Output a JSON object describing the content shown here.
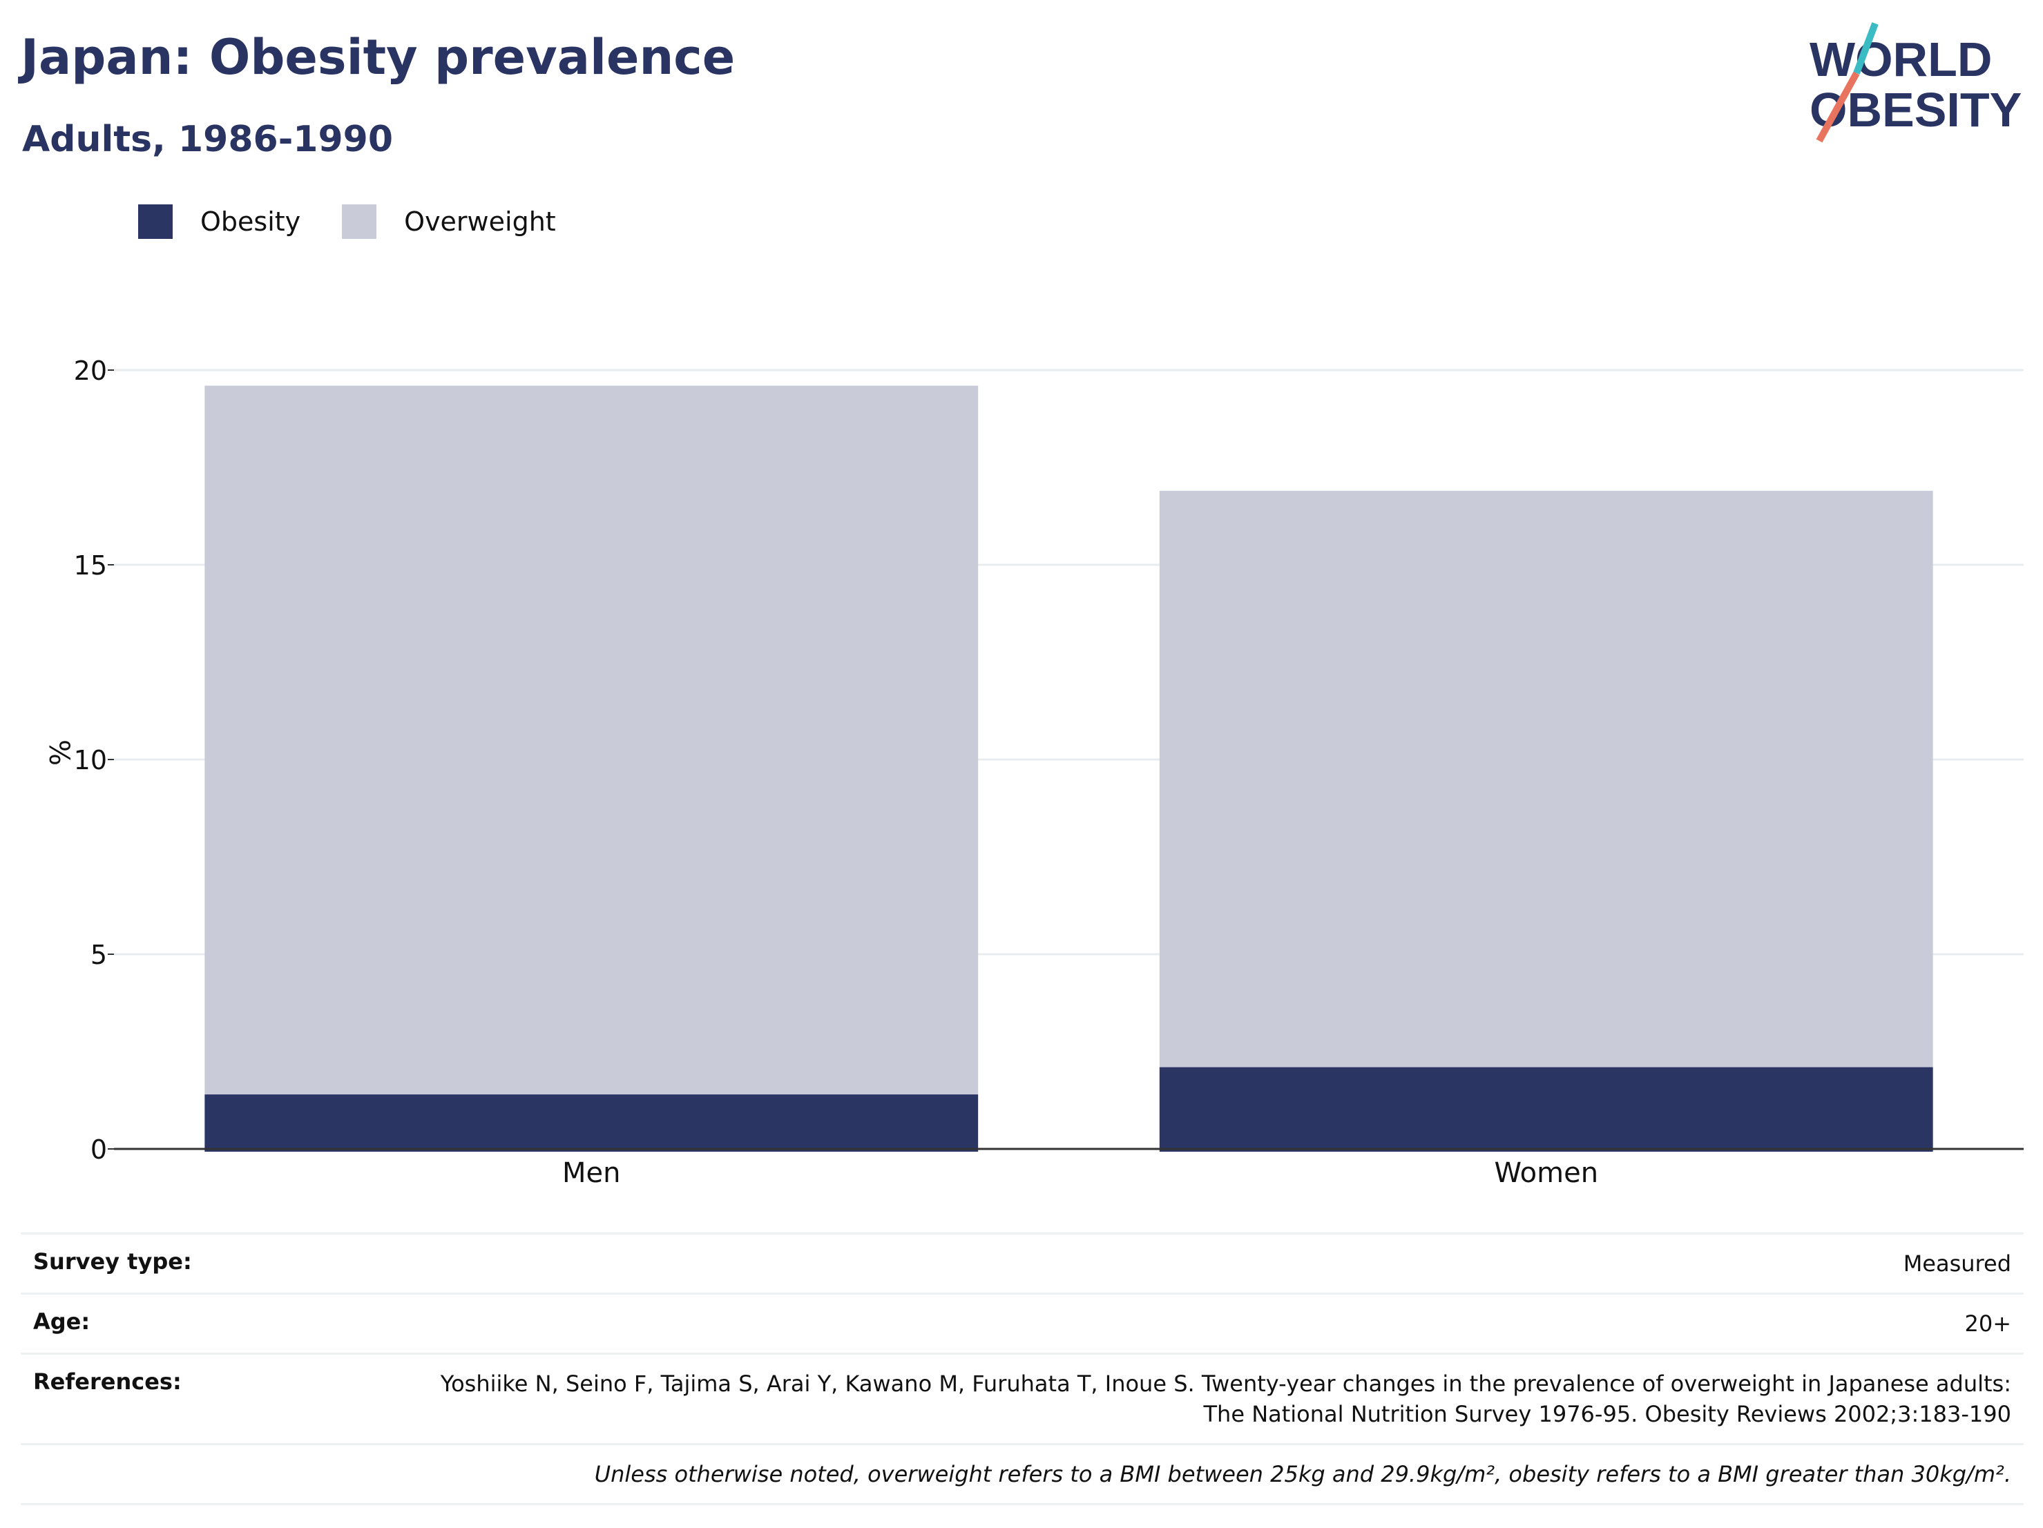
{
  "title": "Japan: Obesity prevalence",
  "subtitle": "Adults, 1986-1990",
  "logo": {
    "line1": "WORLD",
    "line2": "OBESITY"
  },
  "colors": {
    "obesity": "#2b3564",
    "overweight": "#c9ccd8",
    "title": "#2a3463",
    "accent_teal": "#3bbcc4",
    "accent_coral": "#e8735e"
  },
  "legend": [
    {
      "label": "Obesity",
      "color": "#2b3564"
    },
    {
      "label": "Overweight",
      "color": "#c9ccd8"
    }
  ],
  "chart_data": {
    "type": "bar",
    "stacked": true,
    "categories": [
      "Men",
      "Women"
    ],
    "series": [
      {
        "name": "Obesity",
        "values": [
          1.4,
          2.1
        ]
      },
      {
        "name": "Overweight",
        "values": [
          18.2,
          14.8
        ]
      }
    ],
    "ylabel": "%",
    "ylim": [
      0,
      20
    ],
    "yticks": [
      0,
      5,
      10,
      15,
      20
    ],
    "grid": true
  },
  "meta": {
    "survey_type_label": "Survey type:",
    "survey_type_value": "Measured",
    "age_label": "Age:",
    "age_value": "20+",
    "references_label": "References:",
    "references_value": "Yoshiike N, Seino F, Tajima S, Arai Y, Kawano M, Furuhata T, Inoue S. Twenty-year changes in the prevalence of overweight in Japanese adults: The National Nutrition Survey 1976-95. Obesity Reviews 2002;3:183-190",
    "note": "Unless otherwise noted, overweight refers to a BMI between 25kg and 29.9kg/m², obesity refers to a BMI greater than 30kg/m²."
  }
}
